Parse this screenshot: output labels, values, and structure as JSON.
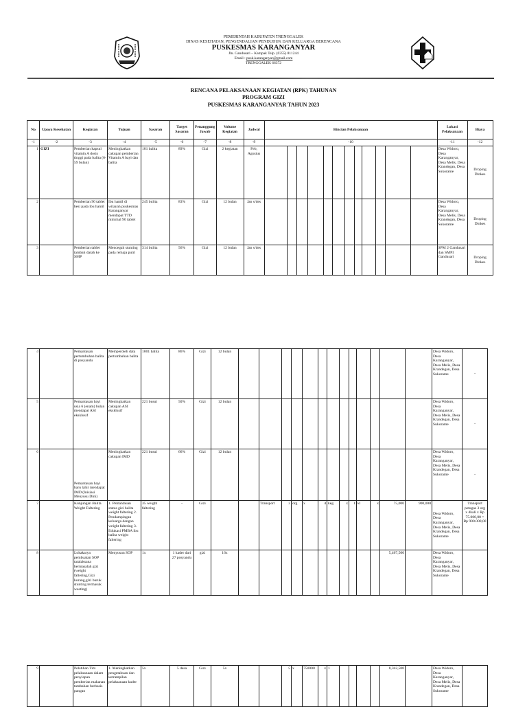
{
  "letterhead": {
    "line1": "PEMERINTAH KABUPATEN TRENGGALEK",
    "line2": "DINAS KESEHATAN, PENGENDALIAN PENDUDUK DAN KELUARGA BERENCANA",
    "name": "PUSKESMAS KARANGANYAR",
    "address": "Jln. Gandusari – Kampak Telp. (0355) 811244",
    "email_label": "Email : ",
    "email": "pusk.karanganyar@gmail.com",
    "city": "TRENGGALEK 66372",
    "logo_left": "kabupaten-trenggalek-crest",
    "logo_right": "puskesmas-cross-logo"
  },
  "title": {
    "line1": "RENCANA PELAKSANAAN KEGIATAN (RPK) TAHUNAN",
    "line2": "PROGRAM GIZI",
    "line3": "PUSKESMAS KARANGANYAR  TAHUN 2023"
  },
  "table": {
    "headers": [
      "No",
      "Upaya Kesehatan",
      "Kegiatan",
      "Tujuan",
      "Sasaran",
      "Target Sasaran",
      "Penanggung Jawab",
      "Volume Kegiatan",
      "Jadwal",
      "Rincian Pelaksanaan",
      "Lokasi Pelaksanaan",
      "Biaya"
    ],
    "numbers": [
      "-1",
      "-2",
      "-3",
      "-4",
      "-5",
      "-6",
      "-7",
      "-8",
      "-9",
      "-10",
      "-11",
      "-12"
    ],
    "rows": [
      {
        "no": "1",
        "upaya": "GIZI",
        "kegiatan": "Pemberian kapsul vitamin A dosis tinggi pada balita (6-59 bulan)",
        "tujuan": "Meningkatkan cakupan pemberian Vitamin A bayi dan balita",
        "sasaran": "101 balita",
        "target": "89%",
        "pj": "Gizi",
        "volume": "2 kegiatan",
        "jadwal": "Feb, Agustus",
        "rincian": [
          "",
          "",
          "",
          "",
          "",
          "",
          "",
          "",
          "",
          "",
          "",
          ""
        ],
        "lokasi": "Desa Widoro, Desa Karanganyar, Desa Melis, Desa Krandegan, Desa Sukorame",
        "biaya": "Droping Dinkes"
      },
      {
        "no": "2",
        "upaya": "",
        "kegiatan": "Pemberian 90 tablet besi pada ibu hamil",
        "tujuan": "Ibu hamil di wilayah puskesmas Karanganyar mendapat TTD minimal 90 tablet",
        "sasaran": "245 bulita",
        "target": "83%",
        "pj": "Gizi",
        "volume": "12 bulan",
        "jadwal": "Jan s/des",
        "rincian": [
          "",
          "",
          "",
          "",
          "",
          "",
          "",
          "",
          "",
          "",
          "",
          ""
        ],
        "lokasi": "Desa Widoro, Desa Karanganyar, Desa Melis, Desa Krandegan, Desa Sukorame",
        "biaya": "Droping Dinkes"
      },
      {
        "no": "3",
        "upaya": "",
        "kegiatan": "Pemberian tablet tambah darah ke SMP",
        "tujuan": "Mencegah stunting pada remaja putri",
        "sasaran": "314 bulita",
        "target": "56%",
        "pj": "Gizi",
        "volume": "12 bulan",
        "jadwal": "Jan s/des",
        "rincian": [
          "",
          "",
          "",
          "",
          "",
          "",
          "",
          "",
          "",
          "",
          "",
          ""
        ],
        "lokasi": "SPM 2 Gandusari dan SMPI Gandusari",
        "biaya": "Droping Dinkes"
      },
      {
        "no": "4",
        "upaya": "",
        "kegiatan": "Pemantauan pertumbuhan balita di posyandu",
        "tujuan": "Memperoleh data pertumbuhan balita",
        "sasaran": "1001 balita",
        "target": "86%",
        "pj": "Gizi",
        "volume": "12 bulan",
        "jadwal": "",
        "rincian": [
          "",
          "",
          "",
          "",
          "",
          "",
          "",
          "",
          "",
          "",
          "",
          ""
        ],
        "lokasi": "Desa Widoro, Desa Karanganyar, Desa Melis, Desa Krandegan, Desa Sukorame",
        "biaya": "-"
      },
      {
        "no": "5",
        "upaya": "",
        "kegiatan": "Pemantauan bayi usia 6 (enam) bulan mendapat ASI eksklusif",
        "tujuan": "Meningkatkan cakupan ASI eksklusif",
        "sasaran": "221 busui",
        "target": "50%",
        "pj": "Gizi",
        "volume": "12 bulan",
        "jadwal": "",
        "rincian": [
          "",
          "",
          "",
          "",
          "",
          "",
          "",
          "",
          "",
          "",
          "",
          ""
        ],
        "lokasi": "Desa Widoro, Desa Karanganyar, Desa Melis, Desa Krandegan, Desa Sukorame",
        "biaya": "-"
      },
      {
        "no": "6",
        "upaya": "",
        "kegiatan": "Pemantauan bayi baru lahir mendapat IMD (Inisiasi Menyusu Dini)",
        "tujuan": "Meningkatkan cakupan IMD",
        "sasaran": "221 busui",
        "target": "66%",
        "pj": "Gizi",
        "volume": "12 bulan",
        "jadwal": "",
        "rincian": [
          "",
          "",
          "",
          "",
          "",
          "",
          "",
          "",
          "",
          "",
          "",
          ""
        ],
        "lokasi": "Desa Widoro, Desa Karanganyar, Desa Melis, Desa Krandegan, Desa Sukorame",
        "biaya": "-"
      },
      {
        "no": "7",
        "upaya": "",
        "kegiatan": "Kunjungan Balita Weight Faltering",
        "tujuan": "1. Pemantauan status gizi balita weight faltering 2. Pendampingan keluarga dengan weight faltering 3. Edukasi PMBA ibu balita weight faltering",
        "sasaran": "35 weight faltering",
        "target": "-",
        "pj": "Gizi",
        "volume": "",
        "jadwal": "",
        "rincian": [
          "Transport",
          "3",
          "org",
          "x",
          "4",
          "keg",
          "x",
          "1",
          "kl",
          "x",
          "75,000",
          "900,000"
        ],
        "lokasi": "Desa Widoro, Desa Karanganyar, Desa Melis, Desa Krandegan, Desa Sukorame",
        "biaya": "Transport petugas 3 org x 4kali x Rp 75.000,00 = Rp 900.000,00"
      },
      {
        "no": "8",
        "upaya": "",
        "kegiatan": "Lokakarya pembuatan SOP tatalaksana bermasalah gizi (weight faltering,Gizi kurang,gizi buruk stunting termasuk wasting)",
        "tujuan": "Menyusun SOP",
        "sasaran": "1x",
        "target": "1 kader dari 27 posyandu",
        "pj": "gizi",
        "volume": "16x",
        "jadwal": "",
        "rincian": [
          "",
          "",
          "",
          "",
          "",
          "",
          "",
          "",
          "",
          "",
          "5,467,500",
          ""
        ],
        "lokasi": "Desa Widoro, Desa Karanganyar, Desa Melis, Desa Krandegan, Desa Sukorame",
        "biaya": ""
      },
      {
        "no": "9",
        "upaya": "",
        "kegiatan": "Pelatihan Tim pelaksanaan dalam penyiapan pemberian makanan tambahan berbasis pangan",
        "tujuan": "1. Meningkatkan pengetahuan dan ketrampilan pelaksanaan kader",
        "sasaran": "5x",
        "target": "5 desa",
        "pj": "Gizi",
        "volume": "5x",
        "jadwal": "",
        "rincian": [
          "",
          "5",
          "x",
          "750000",
          "x",
          "1",
          "",
          "",
          "",
          "",
          "8,342,500",
          ""
        ],
        "lokasi": "Desa Widoro, Desa Karanganyar, Desa Melis, Desa Krandegan, Desa Sukorame",
        "biaya": ""
      }
    ]
  }
}
